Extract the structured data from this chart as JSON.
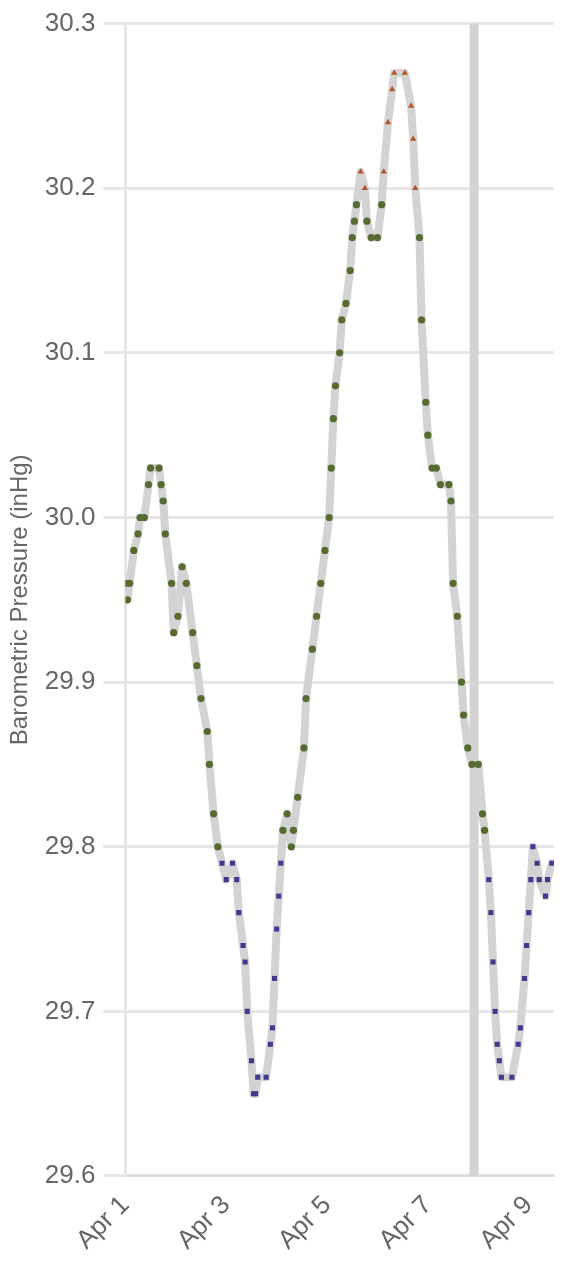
{
  "chart_data": {
    "type": "line",
    "ylabel": "Barometric Pressure (inHg)",
    "x": [
      "--04-01T00:00",
      "--04-01T01:00",
      "--04-01T02:00",
      "--04-01T04:00",
      "--04-01T06:00",
      "--04-01T07:00",
      "--04-01T09:00",
      "--04-01T11:00",
      "--04-01T12:00",
      "--04-01T16:00",
      "--04-01T17:00",
      "--04-01T18:00",
      "--04-01T19:00",
      "--04-01T22:00",
      "--04-01T23:00",
      "--04-02T01:00",
      "--04-02T03:00",
      "--04-02T05:00",
      "--04-02T08:00",
      "--04-02T10:00",
      "--04-02T12:00",
      "--04-02T15:00",
      "--04-02T16:00",
      "--04-02T18:00",
      "--04-02T20:00",
      "--04-02T22:00",
      "--04-03T00:00",
      "--04-03T03:00",
      "--04-03T05:00",
      "--04-03T06:00",
      "--04-03T08:00",
      "--04-03T09:00",
      "--04-03T10:00",
      "--04-03T12:00",
      "--04-03T13:00",
      "--04-03T14:00",
      "--04-03T15:00",
      "--04-03T19:00",
      "--04-03T21:00",
      "--04-03T22:00",
      "--04-03T23:00",
      "--04-04T00:00",
      "--04-04T01:00",
      "--04-04T02:00",
      "--04-04T03:00",
      "--04-04T05:00",
      "--04-04T07:00",
      "--04-04T08:00",
      "--04-04T10:00",
      "--04-04T13:00",
      "--04-04T14:00",
      "--04-04T17:00",
      "--04-04T19:00",
      "--04-04T21:00",
      "--04-04T23:00",
      "--04-05T01:00",
      "--04-05T02:00",
      "--04-05T03:00",
      "--04-05T04:00",
      "--04-05T06:00",
      "--04-05T07:00",
      "--04-05T09:00",
      "--04-05T11:00",
      "--04-05T12:00",
      "--04-05T13:00",
      "--04-05T14:00",
      "--04-05T16:00",
      "--04-05T18:00",
      "--04-05T19:00",
      "--04-05T21:00",
      "--04-06T00:00",
      "--04-06T02:00",
      "--04-06T03:00",
      "--04-06T05:00",
      "--04-06T07:00",
      "--04-06T08:00",
      "--04-06T13:00",
      "--04-06T16:00",
      "--04-06T17:00",
      "--04-06T18:00",
      "--04-06T20:00",
      "--04-06T21:00",
      "--04-06T23:00",
      "--04-07T00:00",
      "--04-07T02:00",
      "--04-07T04:00",
      "--04-07T06:00",
      "--04-07T10:00",
      "--04-07T11:00",
      "--04-07T12:00",
      "--04-07T14:00",
      "--04-07T16:00",
      "--04-07T17:00",
      "--04-07T19:00",
      "--04-07T21:00",
      "--04-08T00:00",
      "--04-08T02:00",
      "--04-08T03:00",
      "--04-08T05:00",
      "--04-08T06:00",
      "--04-08T07:00",
      "--04-08T08:00",
      "--04-08T09:00",
      "--04-08T10:00",
      "--04-08T11:00",
      "--04-08T16:00",
      "--04-08T19:00",
      "--04-08T20:00",
      "--04-08T22:00",
      "--04-08T23:00",
      "--04-09T00:00",
      "--04-09T01:00",
      "--04-09T02:00",
      "--04-09T04:00",
      "--04-09T05:00",
      "--04-09T08:00",
      "--04-09T09:00",
      "--04-09T11:00"
    ],
    "series": [
      {
        "marker": "none",
        "color": "#d3d3d3",
        "values": [
          29.96,
          29.95,
          29.96,
          29.98,
          29.99,
          30.0,
          30.0,
          30.02,
          30.03,
          30.03,
          30.02,
          30.01,
          29.99,
          29.96,
          29.93,
          29.94,
          29.97,
          29.96,
          29.93,
          29.91,
          29.89,
          29.87,
          29.85,
          29.82,
          29.8,
          29.79,
          29.78,
          29.79,
          29.78,
          29.76,
          29.74,
          29.73,
          29.7,
          29.67,
          29.65,
          29.65,
          29.66,
          29.66,
          29.68,
          29.69,
          29.72,
          29.75,
          29.77,
          29.79,
          29.81,
          29.82,
          29.8,
          29.81,
          29.83,
          29.86,
          29.89,
          29.92,
          29.94,
          29.96,
          29.98,
          30.0,
          30.03,
          30.06,
          30.08,
          30.1,
          30.12,
          30.13,
          30.15,
          30.17,
          30.18,
          30.19,
          30.21,
          30.2,
          30.18,
          30.17,
          30.17,
          30.19,
          30.21,
          30.24,
          30.26,
          30.27,
          30.27,
          30.25,
          30.23,
          30.2,
          30.17,
          30.12,
          30.07,
          30.05,
          30.03,
          30.03,
          30.02,
          30.02,
          30.01,
          29.96,
          29.94,
          29.9,
          29.88,
          29.86,
          29.85,
          29.85,
          29.82,
          29.81,
          29.78,
          29.76,
          29.73,
          29.7,
          29.68,
          29.67,
          29.66,
          29.66,
          29.68,
          29.69,
          29.72,
          29.74,
          29.76,
          29.78,
          29.8,
          29.79,
          29.78,
          29.77,
          29.78,
          29.79
        ]
      },
      {
        "type": "scatter",
        "marker": "circle",
        "color": "#556b2f",
        "values": [
          29.96,
          29.95,
          29.96,
          29.98,
          29.99,
          30.0,
          30.0,
          30.02,
          30.03,
          30.03,
          30.02,
          30.01,
          29.99,
          29.96,
          29.93,
          29.94,
          29.97,
          29.96,
          29.93,
          29.91,
          29.89,
          29.87,
          29.85,
          29.82,
          29.8,
          null,
          null,
          null,
          null,
          null,
          null,
          null,
          null,
          null,
          null,
          null,
          null,
          null,
          null,
          null,
          null,
          null,
          null,
          null,
          29.81,
          29.82,
          29.8,
          29.81,
          29.83,
          29.86,
          29.89,
          29.92,
          29.94,
          29.96,
          29.98,
          30.0,
          30.03,
          30.06,
          30.08,
          30.1,
          30.12,
          30.13,
          30.15,
          30.17,
          30.18,
          30.19,
          null,
          null,
          30.18,
          30.17,
          30.17,
          30.19,
          null,
          null,
          null,
          null,
          null,
          null,
          null,
          null,
          30.17,
          30.12,
          30.07,
          30.05,
          30.03,
          30.03,
          30.02,
          30.02,
          30.01,
          29.96,
          29.94,
          29.9,
          29.88,
          29.86,
          29.85,
          29.85,
          29.82,
          29.81,
          null,
          null,
          null,
          null,
          null,
          null,
          null,
          null,
          null,
          null,
          null,
          null,
          null,
          null,
          null,
          null,
          null,
          null,
          null,
          null
        ]
      },
      {
        "type": "scatter",
        "marker": "square",
        "color": "#3f3a8c",
        "values": [
          null,
          null,
          null,
          null,
          null,
          null,
          null,
          null,
          null,
          null,
          null,
          null,
          null,
          null,
          null,
          null,
          null,
          null,
          null,
          null,
          null,
          null,
          null,
          null,
          null,
          29.79,
          29.78,
          29.79,
          29.78,
          29.76,
          29.74,
          29.73,
          29.7,
          29.67,
          29.65,
          29.65,
          29.66,
          29.66,
          29.68,
          29.69,
          29.72,
          29.75,
          29.77,
          29.79,
          null,
          null,
          null,
          null,
          null,
          null,
          null,
          null,
          null,
          null,
          null,
          null,
          null,
          null,
          null,
          null,
          null,
          null,
          null,
          null,
          null,
          null,
          null,
          null,
          null,
          null,
          null,
          null,
          null,
          null,
          null,
          null,
          null,
          null,
          null,
          null,
          null,
          null,
          null,
          null,
          null,
          null,
          null,
          null,
          null,
          null,
          null,
          null,
          null,
          null,
          null,
          null,
          null,
          null,
          29.78,
          29.76,
          29.73,
          29.7,
          29.68,
          29.67,
          29.66,
          29.66,
          29.68,
          29.69,
          29.72,
          29.74,
          29.76,
          29.78,
          29.8,
          29.79,
          29.78,
          29.77,
          29.78,
          29.79
        ]
      },
      {
        "type": "scatter",
        "marker": "triangle",
        "color": "#b5532a",
        "values": [
          null,
          null,
          null,
          null,
          null,
          null,
          null,
          null,
          null,
          null,
          null,
          null,
          null,
          null,
          null,
          null,
          null,
          null,
          null,
          null,
          null,
          null,
          null,
          null,
          null,
          null,
          null,
          null,
          null,
          null,
          null,
          null,
          null,
          null,
          null,
          null,
          null,
          null,
          null,
          null,
          null,
          null,
          null,
          null,
          null,
          null,
          null,
          null,
          null,
          null,
          null,
          null,
          null,
          null,
          null,
          null,
          null,
          null,
          null,
          null,
          null,
          null,
          null,
          null,
          null,
          null,
          30.21,
          30.2,
          null,
          null,
          null,
          null,
          30.21,
          30.24,
          30.26,
          30.27,
          30.27,
          30.25,
          30.23,
          30.2,
          null,
          null,
          null,
          null,
          null,
          null,
          null,
          null,
          null,
          null,
          null,
          null,
          null,
          null,
          null,
          null,
          null,
          null,
          null,
          null,
          null,
          null,
          null,
          null,
          null,
          null,
          null,
          null,
          null,
          null,
          null,
          null,
          null,
          null,
          null,
          null,
          null,
          null
        ]
      }
    ],
    "xlim": [
      "--04-01T00:00",
      "--04-09T12:00"
    ],
    "xticks": [
      {
        "value": "--04-01",
        "label": "Apr 1"
      },
      {
        "value": "--04-03",
        "label": "Apr 3"
      },
      {
        "value": "--04-05",
        "label": "Apr 5"
      },
      {
        "value": "--04-07",
        "label": "Apr 7"
      },
      {
        "value": "--04-09",
        "label": "Apr 9"
      }
    ],
    "ylim": [
      29.6,
      30.3
    ],
    "yticks": [
      29.6,
      29.7,
      29.8,
      29.9,
      {
        "value": 30.0,
        "label": "30.0"
      },
      30.1,
      30.2,
      30.3
    ],
    "ref_lines": [
      {
        "axis": "x",
        "value": "--04-07T22:00",
        "color": "#d3d3d3"
      }
    ],
    "grid": "y",
    "legend": false
  }
}
